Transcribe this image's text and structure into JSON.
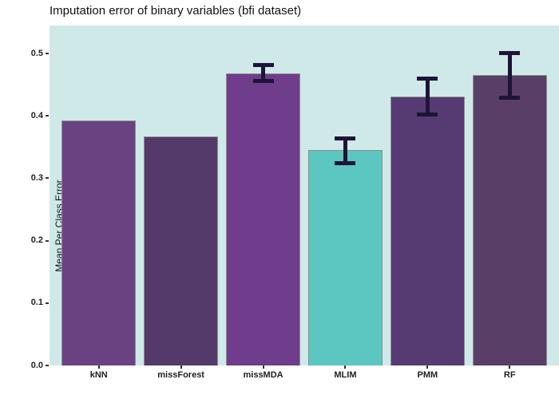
{
  "chart_data": {
    "type": "bar",
    "title": "Imputation error of binary variables (bfi dataset)",
    "ylabel": "Mean Per Class Error",
    "xlabel": "",
    "categories": [
      "kNN",
      "missForest",
      "missMDA",
      "MLIM",
      "PMM",
      "RF"
    ],
    "values": [
      0.392,
      0.367,
      0.468,
      0.345,
      0.431,
      0.465
    ],
    "error_low": [
      null,
      null,
      0.455,
      0.323,
      0.401,
      0.429
    ],
    "error_high": [
      null,
      null,
      0.482,
      0.365,
      0.46,
      0.501
    ],
    "yticks": [
      0.0,
      0.1,
      0.2,
      0.3,
      0.4,
      0.5
    ],
    "ylim": [
      0,
      0.545
    ],
    "grid": false,
    "legend": "none",
    "colors": {
      "bars": [
        "#6A4282",
        "#543A6B",
        "#703C8C",
        "#5BC7C0",
        "#563B72",
        "#593E68"
      ],
      "bar_border": "#8E8E8E",
      "error_bar": "#1E1438",
      "panel_background": "#CFE9E9",
      "text": "#1F1F1F"
    }
  }
}
